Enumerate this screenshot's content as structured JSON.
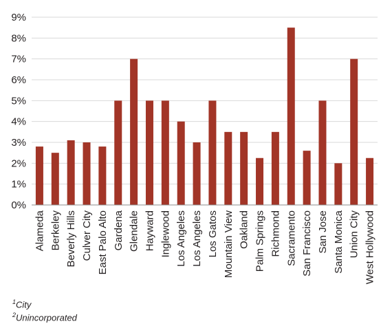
{
  "chart_data": {
    "type": "bar",
    "categories": [
      "Alameda",
      "Berkeley",
      "Beverly Hills",
      "Culver City",
      "East Palo Alto",
      "Gardena",
      "Glendale",
      "Hayward",
      "Inglewood",
      "Los Angeles",
      "Los Angeles",
      "Los Gatos",
      "Mountain View",
      "Oakland",
      "Palm Springs",
      "Richmond",
      "Sacramento",
      "San Francisco",
      "San Jose",
      "Santa Monica",
      "Union City",
      "West Hollywood"
    ],
    "values": [
      2.8,
      2.5,
      3.1,
      3.0,
      2.8,
      5.0,
      7.0,
      5.0,
      5.0,
      4.0,
      3.0,
      5.0,
      3.5,
      3.5,
      2.25,
      3.5,
      8.5,
      2.6,
      5.0,
      2.0,
      7.0,
      2.25
    ],
    "ylim": [
      0,
      9
    ],
    "yticks": [
      "0%",
      "1%",
      "2%",
      "3%",
      "4%",
      "5%",
      "6%",
      "7%",
      "8%",
      "9%"
    ],
    "bar_color": "#a23527",
    "grid": true,
    "grid_color": "#d9d9d9",
    "axis_color": "#8c8c8c"
  },
  "footnotes": [
    {
      "marker": "1",
      "text": "City"
    },
    {
      "marker": "2",
      "text": "Unincorporated"
    }
  ]
}
